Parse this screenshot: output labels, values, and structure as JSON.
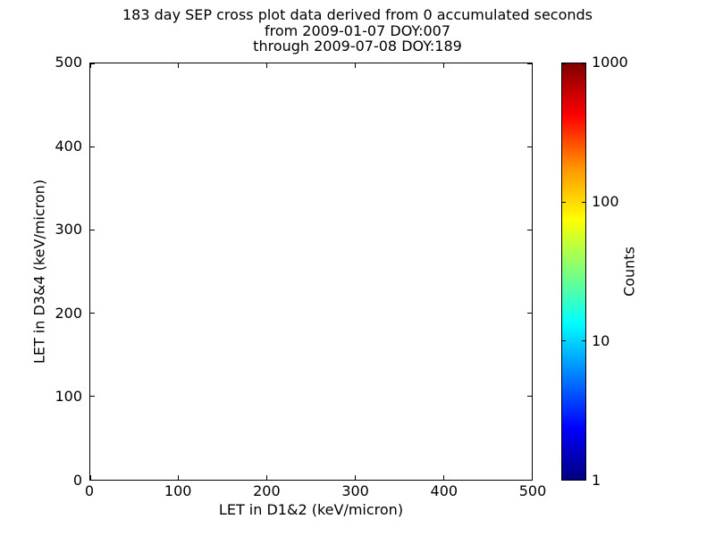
{
  "chart_data": {
    "type": "scatter",
    "title": "183 day SEP cross plot data derived from 0 accumulated seconds",
    "title_lines": [
      "183 day SEP cross plot data derived from 0 accumulated seconds",
      "from 2009-01-07 DOY:007",
      "through 2009-07-08 DOY:189"
    ],
    "duration_days": 183,
    "accumulated_seconds": 0,
    "date_from": "2009-01-07",
    "doy_from": "007",
    "date_through": "2009-07-08",
    "doy_through": "189",
    "xlabel": "LET in D1&2 (keV/micron)",
    "ylabel": "LET in D3&4 (keV/micron)",
    "xlim": [
      0,
      500
    ],
    "ylim": [
      0,
      500
    ],
    "x_ticks": [
      0,
      100,
      200,
      300,
      400,
      500
    ],
    "y_ticks": [
      0,
      100,
      200,
      300,
      400,
      500
    ],
    "grid": false,
    "points": [],
    "colorbar": {
      "label": "Counts",
      "scale": "log",
      "min": 1,
      "max": 1000,
      "ticks": [
        1,
        10,
        100,
        1000
      ],
      "colormap": "jet",
      "colormap_stops": [
        {
          "color": "#000080",
          "pos": 0
        },
        {
          "color": "#0000ff",
          "pos": 12.5
        },
        {
          "color": "#00ffff",
          "pos": 37.5
        },
        {
          "color": "#7dff7a",
          "pos": 50
        },
        {
          "color": "#ffff00",
          "pos": 62.5
        },
        {
          "color": "#ff9400",
          "pos": 75
        },
        {
          "color": "#ff0000",
          "pos": 87.5
        },
        {
          "color": "#800000",
          "pos": 100
        }
      ]
    }
  },
  "colors": {
    "background": "#ffffff",
    "axes": "#000000",
    "text": "#000000"
  }
}
